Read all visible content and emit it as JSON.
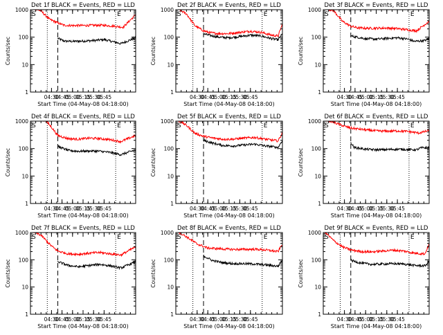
{
  "page": {
    "layout": "3x3 grid of detector count-rate panels"
  },
  "colors": {
    "background": "#ffffff",
    "axes": "#000000",
    "events": "#000000",
    "lld": "#ff0000"
  },
  "chart_data": [
    {
      "type": "line",
      "title": "Det 1f BLACK = Events, RED = LLD",
      "xlabel": "Start Time (04-May-08 04:18:00)",
      "ylabel": "Counts/sec",
      "yscale": "log",
      "ylim": [
        1,
        1000
      ],
      "yticks": [
        "1",
        "10",
        "100",
        "1000"
      ],
      "xlim": [
        0,
        100
      ],
      "xticks": [
        {
          "pos": 20,
          "label": "04:30"
        },
        {
          "pos": 30,
          "label": "04:45"
        },
        {
          "pos": 40,
          "label": "05:00"
        },
        {
          "pos": 50,
          "label": "05:15"
        },
        {
          "pos": 60,
          "label": "05:30"
        },
        {
          "pos": 70,
          "label": "05:45"
        }
      ],
      "markers": {
        "S": 0,
        "E": 81
      },
      "dotted_lines": [
        16,
        81
      ],
      "dashed_line": 26,
      "series": [
        {
          "name": "Events",
          "color": "#000000",
          "start": 26,
          "x": [
            26,
            32,
            40,
            50,
            60,
            70,
            76,
            86,
            100
          ],
          "y": [
            90,
            72,
            70,
            72,
            75,
            82,
            72,
            58,
            95
          ]
        },
        {
          "name": "LLD",
          "color": "#ff0000",
          "start": 0,
          "x": [
            0,
            10,
            18,
            26,
            32,
            40,
            50,
            60,
            70,
            80,
            88,
            100
          ],
          "y": [
            1200,
            900,
            450,
            330,
            270,
            265,
            265,
            270,
            270,
            250,
            230,
            650
          ]
        }
      ]
    },
    {
      "type": "line",
      "title": "Det 2f BLACK = Events, RED = LLD",
      "xlabel": "Start Time (04-May-08 04:18:00)",
      "ylabel": "Counts/sec",
      "yscale": "log",
      "ylim": [
        1,
        1000
      ],
      "yticks": [
        "1",
        "10",
        "100",
        "1000"
      ],
      "xlim": [
        0,
        100
      ],
      "xticks": [
        {
          "pos": 20,
          "label": "04:30"
        },
        {
          "pos": 30,
          "label": "04:45"
        },
        {
          "pos": 40,
          "label": "05:00"
        },
        {
          "pos": 50,
          "label": "05:15"
        },
        {
          "pos": 60,
          "label": "05:30"
        },
        {
          "pos": 70,
          "label": "05:45"
        }
      ],
      "markers": {
        "S": 0,
        "E": 81
      },
      "dotted_lines": [
        16,
        81
      ],
      "dashed_line": 26,
      "series": [
        {
          "name": "Events",
          "color": "#000000",
          "start": 26,
          "x": [
            26,
            40,
            50,
            60,
            70,
            80,
            90,
            96,
            100
          ],
          "y": [
            130,
            100,
            95,
            105,
            118,
            110,
            88,
            80,
            130
          ]
        },
        {
          "name": "LLD",
          "color": "#ff0000",
          "start": 0,
          "x": [
            0,
            10,
            18,
            26,
            32,
            40,
            50,
            60,
            70,
            80,
            90,
            96,
            100
          ],
          "y": [
            1200,
            700,
            260,
            170,
            145,
            135,
            135,
            150,
            165,
            150,
            118,
            110,
            300
          ]
        }
      ]
    },
    {
      "type": "line",
      "title": "Det 3f BLACK = Events, RED = LLD",
      "xlabel": "Start Time (04-May-08 04:18:00)",
      "ylabel": "Counts/sec",
      "yscale": "log",
      "ylim": [
        1,
        1000
      ],
      "yticks": [
        "1",
        "10",
        "100",
        "1000"
      ],
      "xlim": [
        0,
        100
      ],
      "xticks": [
        {
          "pos": 20,
          "label": "04:30"
        },
        {
          "pos": 30,
          "label": "04:45"
        },
        {
          "pos": 40,
          "label": "05:00"
        },
        {
          "pos": 50,
          "label": "05:15"
        },
        {
          "pos": 60,
          "label": "05:30"
        },
        {
          "pos": 70,
          "label": "05:45"
        }
      ],
      "markers": {
        "S": 0,
        "E": 81
      },
      "dotted_lines": [
        16,
        81
      ],
      "dashed_line": 26,
      "series": [
        {
          "name": "Events",
          "color": "#000000",
          "start": 26,
          "x": [
            26,
            40,
            50,
            60,
            70,
            80,
            86,
            96,
            100
          ],
          "y": [
            110,
            88,
            85,
            90,
            95,
            85,
            70,
            75,
            90
          ]
        },
        {
          "name": "LLD",
          "color": "#ff0000",
          "start": 0,
          "x": [
            0,
            10,
            18,
            26,
            32,
            40,
            50,
            60,
            70,
            80,
            88,
            100
          ],
          "y": [
            1200,
            900,
            380,
            250,
            220,
            210,
            212,
            215,
            205,
            185,
            170,
            380
          ]
        }
      ]
    },
    {
      "type": "line",
      "title": "Det 4f BLACK = Events, RED = LLD",
      "xlabel": "Start Time (04-May-08 04:18:00)",
      "ylabel": "Counts/sec",
      "yscale": "log",
      "ylim": [
        1,
        1000
      ],
      "yticks": [
        "1",
        "10",
        "100",
        "1000"
      ],
      "xlim": [
        0,
        100
      ],
      "xticks": [
        {
          "pos": 20,
          "label": "04:30"
        },
        {
          "pos": 30,
          "label": "04:45"
        },
        {
          "pos": 40,
          "label": "05:00"
        },
        {
          "pos": 50,
          "label": "05:15"
        },
        {
          "pos": 60,
          "label": "05:30"
        },
        {
          "pos": 70,
          "label": "05:45"
        }
      ],
      "markers": {
        "S": 0,
        "E": 81
      },
      "dotted_lines": [
        16,
        81
      ],
      "dashed_line": 26,
      "series": [
        {
          "name": "Events",
          "color": "#000000",
          "start": 26,
          "x": [
            26,
            36,
            46,
            56,
            66,
            76,
            86,
            100
          ],
          "y": [
            120,
            85,
            80,
            82,
            80,
            72,
            60,
            90
          ]
        },
        {
          "name": "LLD",
          "color": "#ff0000",
          "start": 0,
          "x": [
            0,
            14,
            20,
            26,
            36,
            46,
            56,
            66,
            76,
            86,
            100
          ],
          "y": [
            1200,
            1100,
            600,
            300,
            230,
            220,
            240,
            230,
            210,
            180,
            300
          ]
        }
      ]
    },
    {
      "type": "line",
      "title": "Det 5f BLACK = Events, RED = LLD",
      "xlabel": "Start Time (04-May-08 04:18:00)",
      "ylabel": "Counts/sec",
      "yscale": "log",
      "ylim": [
        1,
        1000
      ],
      "yticks": [
        "1",
        "10",
        "100",
        "1000"
      ],
      "xlim": [
        0,
        100
      ],
      "xticks": [
        {
          "pos": 20,
          "label": "04:30"
        },
        {
          "pos": 30,
          "label": "04:45"
        },
        {
          "pos": 40,
          "label": "05:00"
        },
        {
          "pos": 50,
          "label": "05:15"
        },
        {
          "pos": 60,
          "label": "05:30"
        },
        {
          "pos": 70,
          "label": "05:45"
        }
      ],
      "markers": {
        "S": 0,
        "E": 81
      },
      "dotted_lines": [
        16,
        81
      ],
      "dashed_line": 26,
      "series": [
        {
          "name": "Events",
          "color": "#000000",
          "start": 26,
          "x": [
            26,
            34,
            44,
            54,
            64,
            74,
            84,
            96,
            100
          ],
          "y": [
            200,
            160,
            130,
            125,
            135,
            145,
            125,
            110,
            200
          ]
        },
        {
          "name": "LLD",
          "color": "#ff0000",
          "start": 0,
          "x": [
            0,
            10,
            18,
            26,
            34,
            44,
            54,
            64,
            74,
            84,
            96,
            100
          ],
          "y": [
            1200,
            700,
            360,
            280,
            245,
            220,
            220,
            240,
            255,
            220,
            190,
            380
          ]
        }
      ]
    },
    {
      "type": "line",
      "title": "Det 6f BLACK = Events, RED = LLD",
      "xlabel": "Start Time (04-May-08 04:18:00)",
      "ylabel": "Counts/sec",
      "yscale": "log",
      "ylim": [
        1,
        1000
      ],
      "yticks": [
        "1",
        "10",
        "100",
        "1000"
      ],
      "xlim": [
        0,
        100
      ],
      "xticks": [
        {
          "pos": 20,
          "label": "04:30"
        },
        {
          "pos": 30,
          "label": "04:45"
        },
        {
          "pos": 40,
          "label": "05:00"
        },
        {
          "pos": 50,
          "label": "05:15"
        },
        {
          "pos": 60,
          "label": "05:30"
        },
        {
          "pos": 70,
          "label": "05:45"
        }
      ],
      "markers": {
        "S": 0,
        "E": 81
      },
      "dotted_lines": [
        16,
        81
      ],
      "dashed_line": 26,
      "series": [
        {
          "name": "Events",
          "color": "#000000",
          "start": 26,
          "x": [
            26,
            29,
            40,
            50,
            60,
            70,
            80,
            88,
            92,
            100
          ],
          "y": [
            170,
            110,
            95,
            90,
            92,
            95,
            92,
            90,
            105,
            110
          ]
        },
        {
          "name": "LLD",
          "color": "#ff0000",
          "start": 0,
          "x": [
            0,
            10,
            20,
            26,
            40,
            50,
            60,
            70,
            80,
            90,
            100
          ],
          "y": [
            1200,
            900,
            650,
            560,
            480,
            440,
            430,
            440,
            420,
            370,
            450
          ]
        }
      ]
    },
    {
      "type": "line",
      "title": "Det 7f BLACK = Events, RED = LLD",
      "xlabel": "Start Time (04-May-08 04:18:00)",
      "ylabel": "Counts/sec",
      "yscale": "log",
      "ylim": [
        1,
        1000
      ],
      "yticks": [
        "1",
        "10",
        "100",
        "1000"
      ],
      "xlim": [
        0,
        100
      ],
      "xticks": [
        {
          "pos": 20,
          "label": "04:30"
        },
        {
          "pos": 30,
          "label": "04:45"
        },
        {
          "pos": 40,
          "label": "05:00"
        },
        {
          "pos": 50,
          "label": "05:15"
        },
        {
          "pos": 60,
          "label": "05:30"
        },
        {
          "pos": 70,
          "label": "05:45"
        }
      ],
      "markers": {
        "S": 0,
        "E": 81
      },
      "dotted_lines": [
        16,
        81
      ],
      "dashed_line": 26,
      "series": [
        {
          "name": "Events",
          "color": "#000000",
          "start": 26,
          "x": [
            26,
            36,
            46,
            56,
            66,
            76,
            86,
            100
          ],
          "y": [
            85,
            62,
            55,
            62,
            68,
            60,
            50,
            85
          ]
        },
        {
          "name": "LLD",
          "color": "#ff0000",
          "start": 0,
          "x": [
            0,
            10,
            20,
            26,
            36,
            46,
            56,
            66,
            76,
            86,
            100
          ],
          "y": [
            1200,
            800,
            320,
            210,
            165,
            160,
            175,
            185,
            165,
            150,
            300
          ]
        }
      ]
    },
    {
      "type": "line",
      "title": "Det 8f BLACK = Events, RED = LLD",
      "xlabel": "Start Time (04-May-08 04:18:00)",
      "ylabel": "Counts/sec",
      "yscale": "log",
      "ylim": [
        1,
        1000
      ],
      "yticks": [
        "1",
        "10",
        "100",
        "1000"
      ],
      "xlim": [
        0,
        100
      ],
      "xticks": [
        {
          "pos": 20,
          "label": "04:30"
        },
        {
          "pos": 30,
          "label": "04:45"
        },
        {
          "pos": 40,
          "label": "05:00"
        },
        {
          "pos": 50,
          "label": "05:15"
        },
        {
          "pos": 60,
          "label": "05:30"
        },
        {
          "pos": 70,
          "label": "05:45"
        }
      ],
      "markers": {
        "S": 0,
        "E": 81
      },
      "dotted_lines": [
        16,
        81
      ],
      "dashed_line": 26,
      "series": [
        {
          "name": "Events",
          "color": "#000000",
          "start": 26,
          "x": [
            26,
            34,
            44,
            54,
            64,
            74,
            84,
            96,
            100
          ],
          "y": [
            140,
            95,
            78,
            72,
            72,
            70,
            65,
            58,
            100
          ]
        },
        {
          "name": "LLD",
          "color": "#ff0000",
          "start": 0,
          "x": [
            0,
            10,
            20,
            30,
            44,
            54,
            64,
            74,
            84,
            96,
            100
          ],
          "y": [
            1200,
            700,
            380,
            270,
            250,
            240,
            240,
            245,
            230,
            200,
            380
          ]
        }
      ]
    },
    {
      "type": "line",
      "title": "Det 9f BLACK = Events, RED = LLD",
      "xlabel": "Start Time (04-May-08 04:18:00)",
      "ylabel": "Counts/sec",
      "yscale": "log",
      "ylim": [
        1,
        1000
      ],
      "yticks": [
        "1",
        "10",
        "100",
        "1000"
      ],
      "xlim": [
        0,
        100
      ],
      "xticks": [
        {
          "pos": 20,
          "label": "04:30"
        },
        {
          "pos": 30,
          "label": "04:45"
        },
        {
          "pos": 40,
          "label": "05:00"
        },
        {
          "pos": 50,
          "label": "05:15"
        },
        {
          "pos": 60,
          "label": "05:30"
        },
        {
          "pos": 70,
          "label": "05:45"
        }
      ],
      "markers": {
        "S": 0,
        "E": 81
      },
      "dotted_lines": [
        16,
        81
      ],
      "dashed_line": 26,
      "series": [
        {
          "name": "Events",
          "color": "#000000",
          "start": 26,
          "x": [
            26,
            36,
            46,
            56,
            66,
            76,
            86,
            96,
            100
          ],
          "y": [
            95,
            75,
            68,
            70,
            72,
            70,
            62,
            60,
            85
          ]
        },
        {
          "name": "LLD",
          "color": "#ff0000",
          "start": 0,
          "x": [
            0,
            10,
            18,
            26,
            36,
            46,
            56,
            66,
            76,
            86,
            96,
            100
          ],
          "y": [
            1200,
            500,
            300,
            230,
            200,
            195,
            210,
            225,
            210,
            175,
            165,
            380
          ]
        }
      ]
    }
  ]
}
